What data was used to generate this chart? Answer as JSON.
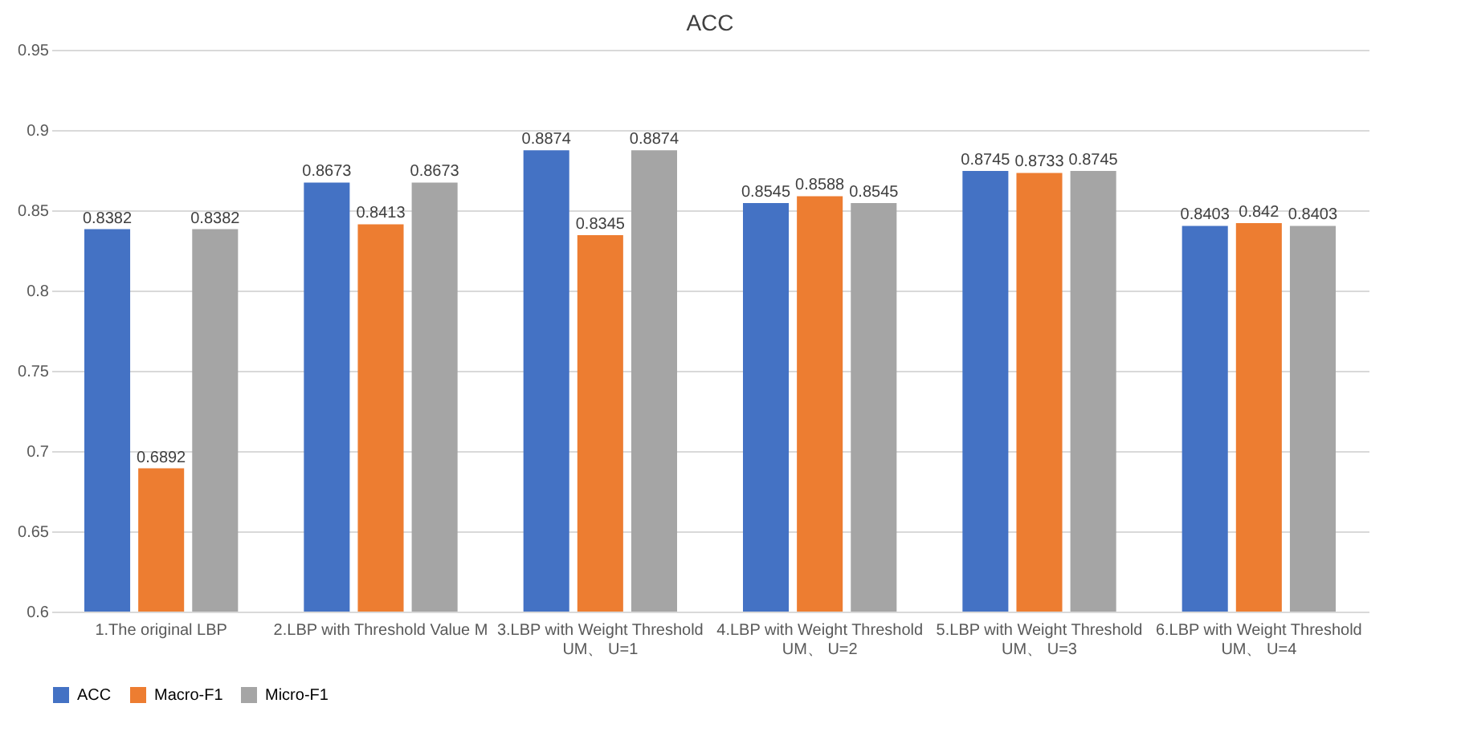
{
  "chart_data": {
    "type": "bar",
    "title": "ACC",
    "categories": [
      "1.The original LBP",
      "2.LBP with Threshold Value M",
      "3.LBP with Weight Threshold\nUM、 U=1",
      "4.LBP with Weight Threshold\nUM、 U=2",
      "5.LBP with Weight Threshold\nUM、 U=3",
      "6.LBP with Weight Threshold\nUM、 U=4"
    ],
    "series": [
      {
        "name": "ACC",
        "color": "#4472c4",
        "values": [
          0.8382,
          0.8673,
          0.8874,
          0.8545,
          0.8745,
          0.8403
        ]
      },
      {
        "name": "Macro-F1",
        "color": "#ed7d31",
        "values": [
          0.6892,
          0.8413,
          0.8345,
          0.8588,
          0.8733,
          0.842
        ]
      },
      {
        "name": "Micro-F1",
        "color": "#a5a5a5",
        "values": [
          0.8382,
          0.8673,
          0.8874,
          0.8545,
          0.8745,
          0.8403
        ]
      }
    ],
    "ylim": [
      0.6,
      0.95
    ],
    "yticks": [
      0.6,
      0.65,
      0.7,
      0.75,
      0.8,
      0.85,
      0.9,
      0.95
    ],
    "grid": "y",
    "legend": "bottom",
    "data_labels": true
  }
}
